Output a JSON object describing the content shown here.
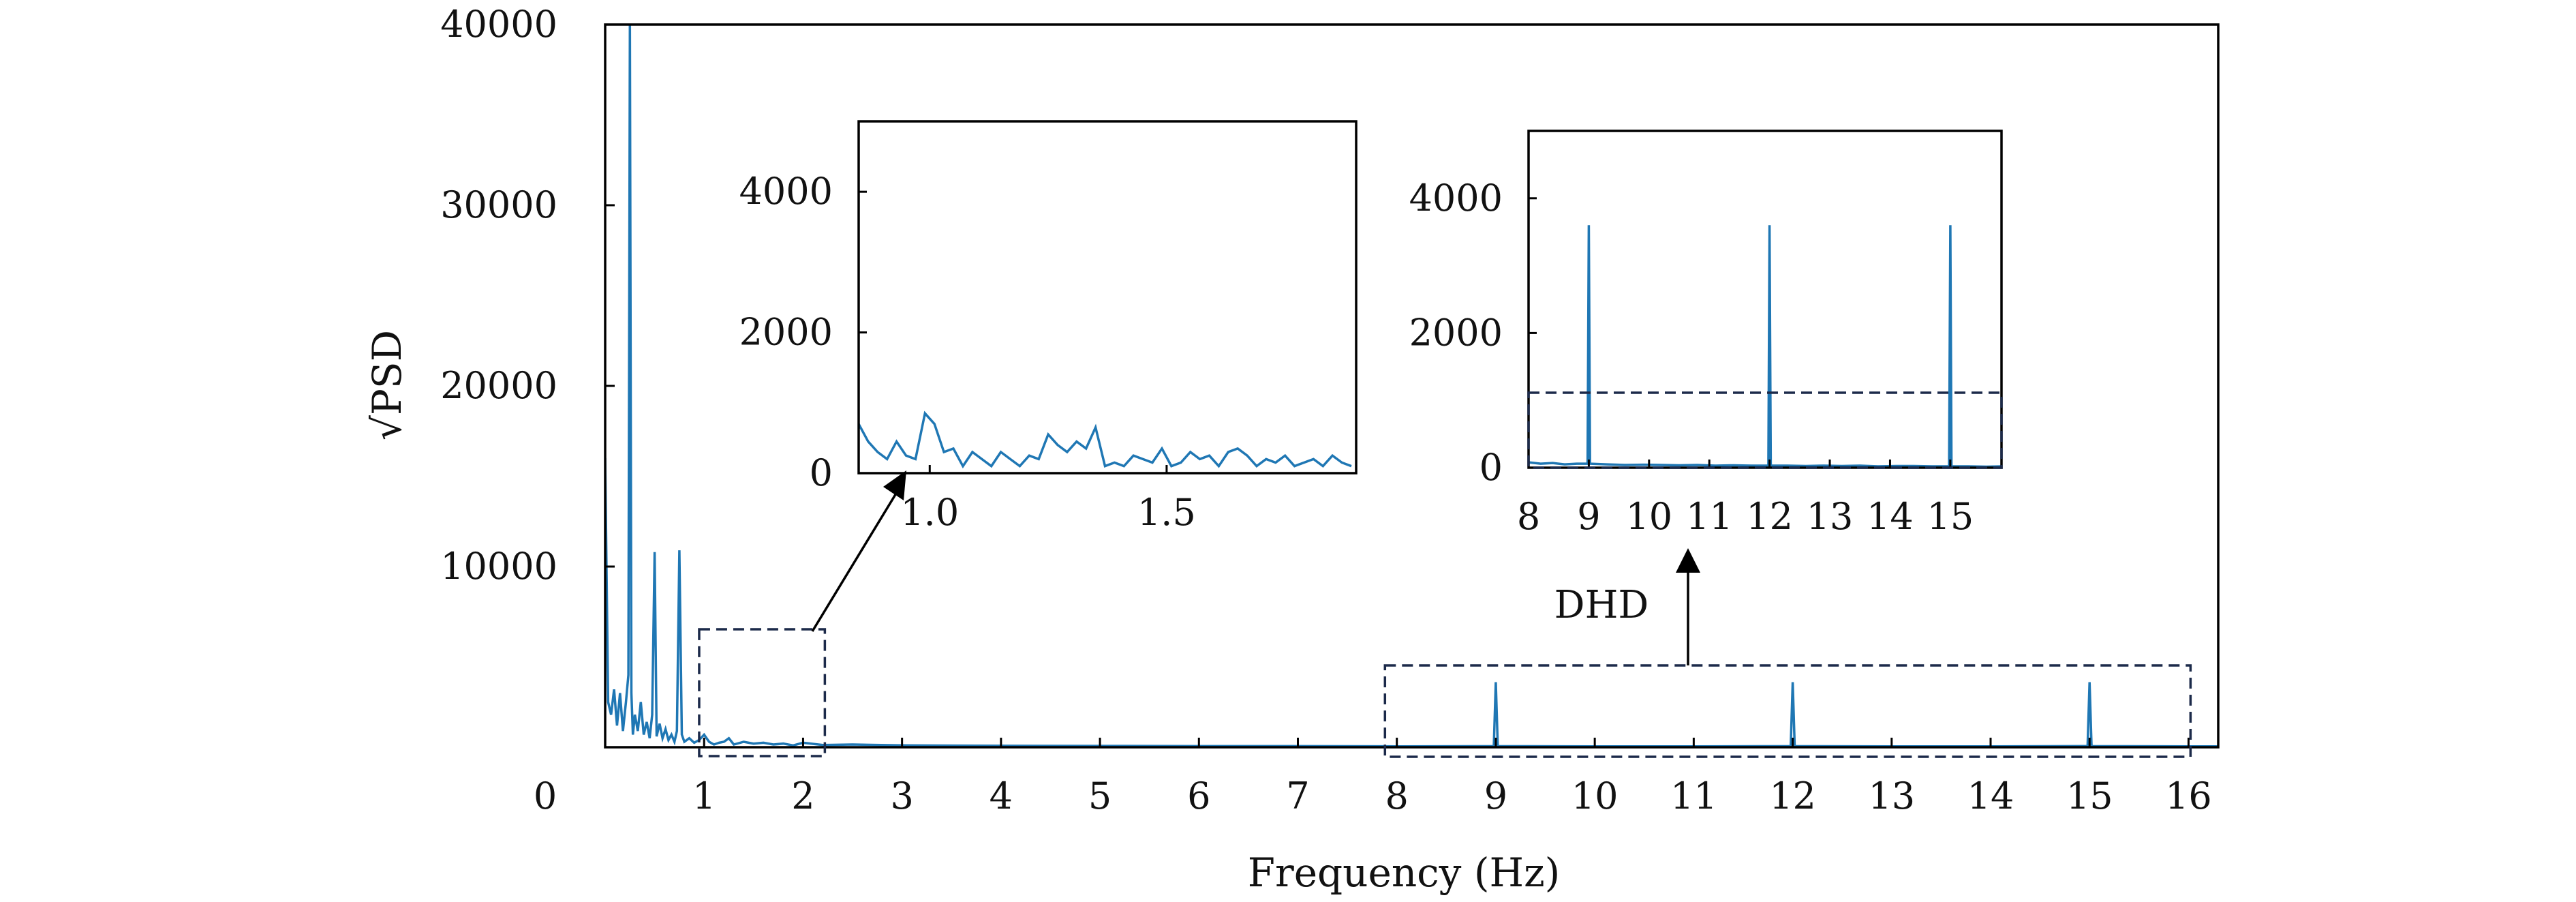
{
  "colors": {
    "series": "#1f77b4",
    "axis": "#000000",
    "zoom_box": "#1c2a4a"
  },
  "chart_data": [
    {
      "panel": "main",
      "type": "line",
      "xlabel": "Frequency (Hz)",
      "ylabel": "√PSD",
      "xlim": [
        0,
        16.3
      ],
      "ylim": [
        0,
        40000
      ],
      "xticks": [
        "0",
        "1",
        "2",
        "3",
        "4",
        "5",
        "6",
        "7",
        "8",
        "9",
        "10",
        "11",
        "12",
        "13",
        "14",
        "15",
        "16"
      ],
      "yticks": [
        "10000",
        "20000",
        "30000",
        "40000"
      ],
      "grid": false,
      "legend": "none",
      "annotation": "DHD",
      "series": [
        {
          "x": [
            0,
            0.03,
            0.06,
            0.09,
            0.12,
            0.15,
            0.18,
            0.21,
            0.235,
            0.25,
            0.265,
            0.28,
            0.3,
            0.33,
            0.36,
            0.39,
            0.42,
            0.45,
            0.475,
            0.5,
            0.52,
            0.55,
            0.58,
            0.61,
            0.64,
            0.67,
            0.7,
            0.725,
            0.75,
            0.775,
            0.8,
            0.85,
            0.9,
            0.95,
            1.0,
            1.05,
            1.1,
            1.15,
            1.2,
            1.25,
            1.3,
            1.4,
            1.5,
            1.6,
            1.7,
            1.8,
            1.9,
            2.0,
            2.2,
            2.5,
            3.0,
            4.0,
            5.0,
            6.0,
            7.0,
            8.0,
            8.98,
            9.0,
            9.02,
            10.0,
            11.0,
            11.98,
            12.0,
            12.02,
            13.0,
            14.0,
            14.98,
            15.0,
            15.02,
            16.0,
            16.3
          ],
          "y": [
            16000,
            2500,
            1800,
            3200,
            1200,
            3000,
            900,
            2500,
            4000,
            40000,
            3000,
            700,
            1800,
            900,
            2500,
            700,
            1400,
            500,
            1800,
            10800,
            600,
            1300,
            500,
            1000,
            400,
            700,
            300,
            900,
            10900,
            700,
            300,
            500,
            250,
            400,
            700,
            300,
            150,
            250,
            300,
            500,
            150,
            300,
            200,
            250,
            150,
            200,
            100,
            250,
            120,
            150,
            100,
            80,
            70,
            60,
            60,
            50,
            60,
            3600,
            60,
            50,
            50,
            60,
            3600,
            60,
            50,
            50,
            60,
            3600,
            60,
            50,
            50
          ]
        }
      ]
    },
    {
      "panel": "inset-low",
      "type": "line",
      "xlim": [
        0.85,
        1.9
      ],
      "ylim": [
        0,
        5000
      ],
      "xticks": [
        "1.0",
        "1.5"
      ],
      "yticks": [
        "0",
        "2000",
        "4000"
      ],
      "series": [
        {
          "x": [
            0.85,
            0.87,
            0.89,
            0.91,
            0.93,
            0.95,
            0.97,
            0.99,
            1.01,
            1.03,
            1.05,
            1.07,
            1.09,
            1.11,
            1.13,
            1.15,
            1.17,
            1.19,
            1.21,
            1.23,
            1.25,
            1.27,
            1.29,
            1.31,
            1.33,
            1.35,
            1.37,
            1.39,
            1.41,
            1.43,
            1.45,
            1.47,
            1.49,
            1.51,
            1.53,
            1.55,
            1.57,
            1.59,
            1.61,
            1.63,
            1.65,
            1.67,
            1.69,
            1.71,
            1.73,
            1.75,
            1.77,
            1.79,
            1.81,
            1.83,
            1.85,
            1.87,
            1.89
          ],
          "y": [
            700,
            450,
            300,
            200,
            450,
            250,
            200,
            850,
            700,
            300,
            350,
            100,
            300,
            200,
            100,
            300,
            200,
            100,
            250,
            200,
            550,
            400,
            300,
            450,
            350,
            650,
            100,
            150,
            100,
            250,
            200,
            150,
            350,
            100,
            150,
            300,
            200,
            250,
            100,
            300,
            350,
            250,
            100,
            200,
            150,
            250,
            100,
            150,
            200,
            100,
            250,
            150,
            100
          ]
        }
      ]
    },
    {
      "panel": "inset-high",
      "type": "line",
      "xlim": [
        8,
        15.85
      ],
      "ylim": [
        0,
        5000
      ],
      "xticks": [
        "8",
        "9",
        "10",
        "11",
        "12",
        "13",
        "14",
        "15"
      ],
      "yticks": [
        "0",
        "2000",
        "4000"
      ],
      "series": [
        {
          "x": [
            8.0,
            8.2,
            8.4,
            8.6,
            8.8,
            8.98,
            9.0,
            9.02,
            9.3,
            9.6,
            9.9,
            10.2,
            10.5,
            10.8,
            11.1,
            11.4,
            11.7,
            11.98,
            12.0,
            12.02,
            12.3,
            12.6,
            12.9,
            13.2,
            13.5,
            13.8,
            14.1,
            14.4,
            14.7,
            14.98,
            15.0,
            15.02,
            15.3,
            15.6,
            15.85
          ],
          "y": [
            80,
            60,
            70,
            50,
            60,
            60,
            3600,
            60,
            50,
            40,
            45,
            40,
            35,
            40,
            30,
            35,
            30,
            30,
            3600,
            30,
            30,
            25,
            30,
            25,
            30,
            20,
            25,
            25,
            20,
            20,
            3600,
            20,
            20,
            15,
            20
          ]
        }
      ]
    }
  ]
}
